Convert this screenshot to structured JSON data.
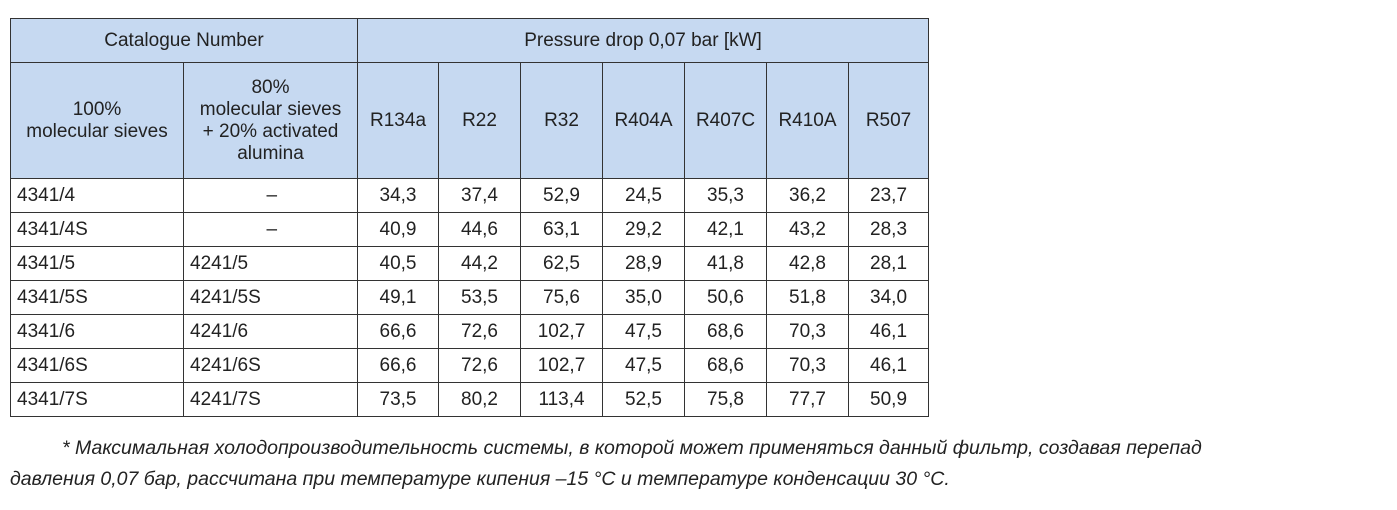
{
  "table": {
    "group_headers": [
      "Catalogue Number",
      "Pressure drop 0,07 bar [kW]"
    ],
    "columns": [
      "100%\nmolecular sieves",
      "80%\nmolecular sieves\n+ 20% activated\nalumina",
      "R134a",
      "R22",
      "R32",
      "R404A",
      "R407C",
      "R410A",
      "R507"
    ],
    "rows": [
      [
        "4341/4",
        "–",
        "34,3",
        "37,4",
        "52,9",
        "24,5",
        "35,3",
        "36,2",
        "23,7"
      ],
      [
        "4341/4S",
        "–",
        "40,9",
        "44,6",
        "63,1",
        "29,2",
        "42,1",
        "43,2",
        "28,3"
      ],
      [
        "4341/5",
        "4241/5",
        "40,5",
        "44,2",
        "62,5",
        "28,9",
        "41,8",
        "42,8",
        "28,1"
      ],
      [
        "4341/5S",
        "4241/5S",
        "49,1",
        "53,5",
        "75,6",
        "35,0",
        "50,6",
        "51,8",
        "34,0"
      ],
      [
        "4341/6",
        "4241/6",
        "66,6",
        "72,6",
        "102,7",
        "47,5",
        "68,6",
        "70,3",
        "46,1"
      ],
      [
        "4341/6S",
        "4241/6S",
        "66,6",
        "72,6",
        "102,7",
        "47,5",
        "68,6",
        "70,3",
        "46,1"
      ],
      [
        "4341/7S",
        "4241/7S",
        "73,5",
        "80,2",
        "113,4",
        "52,5",
        "75,8",
        "77,7",
        "50,9"
      ]
    ]
  },
  "footnote": [
    "* Максимальная холодопроизводительность системы, в которой может применяться данный фильтр, создавая перепад",
    "давления 0,07 бар, рассчитана при температуре кипения –15 °С и температуре конденсации 30 °С."
  ]
}
